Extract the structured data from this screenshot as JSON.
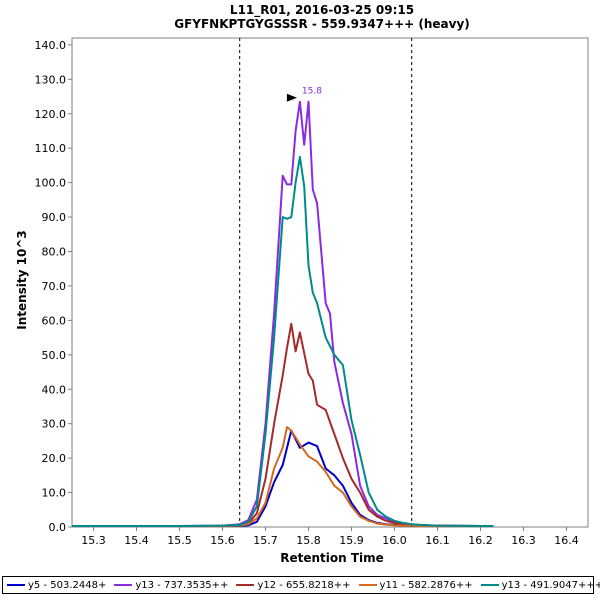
{
  "chart_data": {
    "type": "line",
    "title": "L11_R01, 2016-03-25 09:15",
    "subtitle": "GFYFNKPTGYGSSSR - 559.9347+++ (heavy)",
    "xlabel": "Retention Time",
    "ylabel": "Intensity 10^3",
    "xlim": [
      15.25,
      16.45
    ],
    "ylim": [
      0,
      142
    ],
    "xticks": [
      15.3,
      15.4,
      15.5,
      15.6,
      15.7,
      15.8,
      15.9,
      16.0,
      16.1,
      16.2,
      16.3,
      16.4
    ],
    "xtick_labels": [
      "15.3",
      "15.4",
      "15.5",
      "15.6",
      "15.7",
      "15.8",
      "15.9",
      "16.0",
      "16.1",
      "16.2",
      "16.3",
      "16.4"
    ],
    "yticks": [
      0,
      10,
      20,
      30,
      40,
      50,
      60,
      70,
      80,
      90,
      100,
      110,
      120,
      130,
      140
    ],
    "ytick_labels": [
      "0.0",
      "10.0",
      "20.0",
      "30.0",
      "40.0",
      "50.0",
      "60.0",
      "70.0",
      "80.0",
      "90.0",
      "100.0",
      "110.0",
      "120.0",
      "130.0",
      "140.0"
    ],
    "integration_bounds": [
      15.64,
      16.04
    ],
    "peak_annotation": {
      "x": 15.78,
      "y": 123.5,
      "label": "15.8"
    },
    "grid": false,
    "legend_position": "bottom",
    "series": [
      {
        "name": "y5 - 503.2448+",
        "color": "#0000cc",
        "x": [
          15.25,
          15.3,
          15.4,
          15.5,
          15.6,
          15.64,
          15.66,
          15.68,
          15.7,
          15.72,
          15.74,
          15.76,
          15.78,
          15.8,
          15.82,
          15.84,
          15.86,
          15.88,
          15.9,
          15.92,
          15.94,
          15.96,
          15.98,
          16.0,
          16.02,
          16.04,
          16.06,
          16.1,
          16.2,
          16.23
        ],
        "y": [
          0.3,
          0.3,
          0.3,
          0.3,
          0.3,
          0.3,
          0.5,
          1.5,
          6,
          13,
          18,
          28,
          23,
          24.5,
          23.5,
          17,
          15,
          12,
          7,
          3.5,
          2,
          1.2,
          0.8,
          0.6,
          0.5,
          0.4,
          0.4,
          0.3,
          0.3,
          0.3
        ]
      },
      {
        "name": "y13 - 737.3535++",
        "color": "#8a2be2",
        "x": [
          15.25,
          15.3,
          15.4,
          15.5,
          15.6,
          15.64,
          15.66,
          15.68,
          15.7,
          15.72,
          15.74,
          15.75,
          15.76,
          15.77,
          15.78,
          15.79,
          15.8,
          15.81,
          15.82,
          15.84,
          15.85,
          15.86,
          15.88,
          15.9,
          15.92,
          15.94,
          15.96,
          15.98,
          16.0,
          16.02,
          16.04,
          16.06,
          16.1,
          16.2,
          16.23
        ],
        "y": [
          0.3,
          0.3,
          0.3,
          0.3,
          0.4,
          0.8,
          2,
          8,
          30,
          62,
          102,
          99.5,
          99.5,
          115,
          123.5,
          111,
          123.5,
          98,
          94,
          65,
          62,
          48,
          36,
          27,
          12,
          6,
          3.5,
          2.5,
          1.5,
          1,
          0.8,
          0.5,
          0.4,
          0.3,
          0.3
        ]
      },
      {
        "name": "y12 - 655.8218++",
        "color": "#a52a2a",
        "x": [
          15.25,
          15.3,
          15.4,
          15.5,
          15.6,
          15.64,
          15.66,
          15.68,
          15.7,
          15.72,
          15.74,
          15.75,
          15.76,
          15.77,
          15.78,
          15.8,
          15.81,
          15.82,
          15.84,
          15.86,
          15.88,
          15.9,
          15.92,
          15.94,
          15.96,
          15.98,
          16.0,
          16.02,
          16.04,
          16.06,
          16.1,
          16.2,
          16.23
        ],
        "y": [
          0.3,
          0.3,
          0.3,
          0.3,
          0.3,
          0.5,
          1,
          4,
          14,
          30,
          44,
          52,
          59,
          51,
          56.5,
          44.5,
          42.5,
          35.5,
          34,
          27,
          20,
          14,
          10,
          5,
          3,
          1.8,
          1.2,
          0.9,
          0.7,
          0.5,
          0.4,
          0.3,
          0.3
        ]
      },
      {
        "name": "y11 - 582.2876++",
        "color": "#d2691e",
        "x": [
          15.25,
          15.3,
          15.4,
          15.5,
          15.6,
          15.64,
          15.66,
          15.68,
          15.7,
          15.72,
          15.74,
          15.75,
          15.76,
          15.78,
          15.8,
          15.82,
          15.84,
          15.86,
          15.88,
          15.9,
          15.92,
          15.94,
          15.96,
          15.98,
          16.0,
          16.02,
          16.04,
          16.06,
          16.1,
          16.2,
          16.23
        ],
        "y": [
          0.3,
          0.3,
          0.3,
          0.3,
          0.3,
          0.4,
          0.8,
          2.5,
          7,
          17,
          23,
          29,
          28,
          24,
          20.5,
          19,
          16,
          12,
          10,
          6,
          3,
          1.8,
          1,
          0.7,
          0.5,
          0.4,
          0.4,
          0.3,
          0.3,
          0.3,
          0.3
        ]
      },
      {
        "name": "y13 - 491.9047+++",
        "color": "#008b8b",
        "x": [
          15.25,
          15.3,
          15.4,
          15.5,
          15.6,
          15.64,
          15.66,
          15.68,
          15.7,
          15.72,
          15.74,
          15.75,
          15.76,
          15.77,
          15.78,
          15.79,
          15.8,
          15.81,
          15.82,
          15.84,
          15.86,
          15.88,
          15.9,
          15.92,
          15.94,
          15.96,
          15.98,
          16.0,
          16.02,
          16.04,
          16.06,
          16.1,
          16.2,
          16.23
        ],
        "y": [
          0.3,
          0.3,
          0.3,
          0.3,
          0.4,
          0.6,
          1.5,
          6,
          27,
          55,
          90,
          89.5,
          90,
          100,
          107.5,
          99,
          76,
          68,
          65,
          55,
          50,
          47,
          31,
          21,
          10,
          5,
          3,
          1.8,
          1.2,
          0.8,
          0.6,
          0.4,
          0.3,
          0.3
        ]
      }
    ]
  }
}
